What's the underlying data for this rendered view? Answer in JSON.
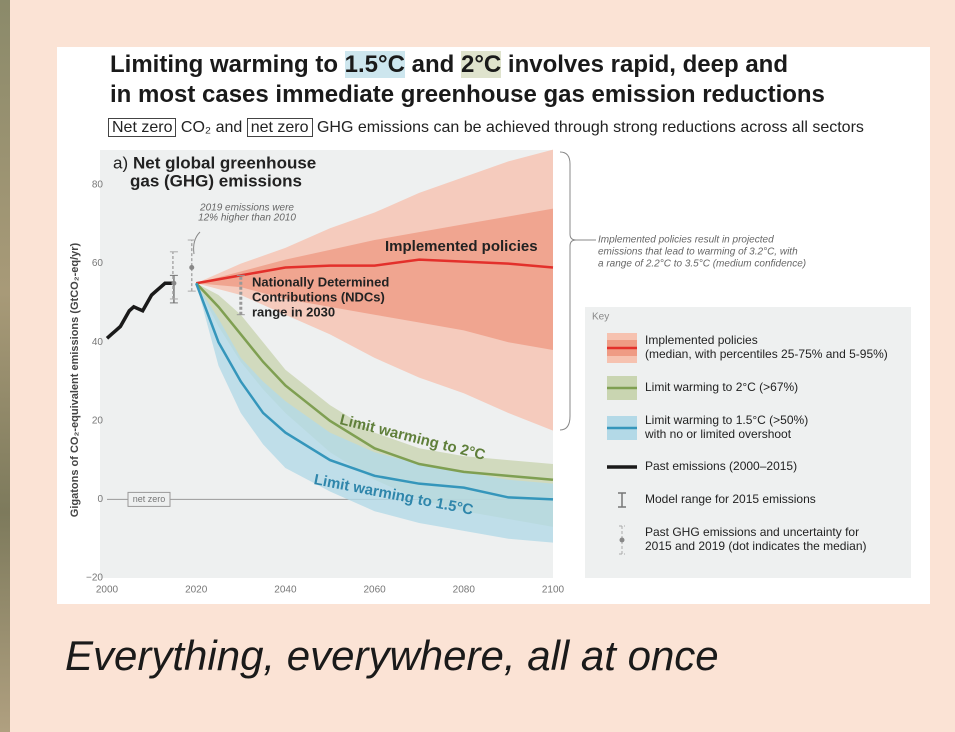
{
  "header": {
    "title_line1": [
      "Limiting warming to ",
      "1.5°C",
      " and ",
      "2°C",
      " involves rapid, deep and"
    ],
    "title_line2": "in most cases immediate greenhouse gas emission reductions",
    "subtitle": [
      "Net zero",
      " CO₂ and ",
      "net zero",
      " GHG emissions can be achieved through strong reductions across all sectors"
    ]
  },
  "chart_data": {
    "type": "line",
    "panel_label": "a)",
    "panel_title": [
      "Net global greenhouse",
      "gas (GHG) emissions"
    ],
    "y_label": "Gigatons of CO₂-equivalent emissions (GtCO₂-eq/yr)",
    "xlim": [
      2000,
      2100
    ],
    "xticks": [
      2000,
      2020,
      2040,
      2060,
      2080,
      2100
    ],
    "ylim": [
      -20,
      80
    ],
    "yticks": [
      {
        "value": -20,
        "label": "−20"
      },
      0,
      20,
      40,
      60,
      80
    ],
    "net_zero": {
      "value": 0,
      "label": "net zero"
    },
    "series": [
      {
        "name": "Implemented policies",
        "color": "#e3302b",
        "x": [
          2020,
          2030,
          2040,
          2050,
          2060,
          2070,
          2080,
          2090,
          2100
        ],
        "values": [
          55,
          57,
          59,
          59.5,
          59.5,
          61,
          60.5,
          60,
          59
        ],
        "bands": [
          {
            "color": "#f6c2b0",
            "lower": [
              55,
              52,
              47,
              42,
              36,
              31,
              27,
              22,
              17.5
            ],
            "upper": [
              55,
              60,
              64,
              69,
              73,
              78,
              82,
              86,
              89
            ]
          },
          {
            "color": "#ef9b84",
            "lower": [
              55,
              54,
              51,
              49,
              47,
              45,
              43,
              40,
              38
            ],
            "upper": [
              55,
              58,
              61,
              63.5,
              66,
              68,
              70,
              72,
              74
            ]
          }
        ]
      },
      {
        "name": "Limit warming to 2°C",
        "color": "#7f9f52",
        "x": [
          2020,
          2025,
          2030,
          2035,
          2040,
          2050,
          2060,
          2070,
          2080,
          2090,
          2100
        ],
        "values": [
          55,
          49,
          42,
          35,
          29,
          20,
          13,
          9,
          7,
          6,
          5
        ],
        "bands": [
          {
            "color": "#c9d5b1",
            "lower": [
              55,
              44,
              35,
              28,
              22,
              12,
              5,
              0,
              -3,
              -5,
              -7
            ],
            "upper": [
              55,
              52,
              47,
              40,
              33,
              24,
              17,
              13,
              11,
              10,
              9
            ]
          }
        ]
      },
      {
        "name": "Limit warming to 1.5°C",
        "color": "#3596bb",
        "x": [
          2020,
          2025,
          2030,
          2035,
          2040,
          2050,
          2060,
          2070,
          2080,
          2090,
          2100
        ],
        "values": [
          55,
          40,
          30,
          22,
          17,
          10,
          6,
          4,
          3,
          0.5,
          0
        ],
        "bands": [
          {
            "color": "#b3d9e7",
            "lower": [
              55,
              34,
              22,
              14,
              8,
              2,
              -3,
              -6,
              -8,
              -10,
              -11
            ],
            "upper": [
              55,
              46,
              36,
              30,
              25,
              17,
              12,
              9,
              7,
              5,
              4
            ]
          }
        ]
      },
      {
        "name": "Past emissions",
        "color": "#1a1a1a",
        "x": [
          2000,
          2001,
          2002,
          2003,
          2004,
          2005,
          2006,
          2007,
          2008,
          2009,
          2010,
          2011,
          2012,
          2013,
          2014,
          2015
        ],
        "values": [
          41,
          42,
          43,
          44,
          46,
          48,
          49,
          48.5,
          48,
          50,
          52,
          53,
          54,
          55,
          55,
          55
        ]
      }
    ],
    "ranges": [
      {
        "x": 2015,
        "low": 50,
        "high": 57,
        "color": "#777777"
      },
      {
        "x": 2015,
        "low": 51,
        "high": 63,
        "median": 55,
        "color": "#aaaaaa"
      },
      {
        "x": 2019,
        "low": 53,
        "high": 66,
        "median": 59,
        "color": "#aaaaaa"
      },
      {
        "x": 2030,
        "low": 47,
        "high": 57,
        "color": "#999999"
      }
    ],
    "annotations": {
      "past_2019": [
        "2019 emissions were",
        "12% higher than 2010"
      ],
      "ndc": [
        "Nationally Determined",
        "Contributions (NDCs)",
        "range in 2030"
      ],
      "projection": [
        "Implemented policies result in projected",
        "emissions that lead to warming of 3.2°C, with",
        "a range of 2.2°C to 3.5°C (medium confidence)"
      ]
    },
    "key": {
      "title": "Key",
      "items": [
        [
          "Implemented policies",
          "(median, with percentiles 25-75% and 5-95%)"
        ],
        [
          "Limit warming to 2°C (>67%)"
        ],
        [
          "Limit warming to 1.5°C (>50%)",
          "with no or limited overshoot"
        ],
        [
          "Past emissions (2000–2015)"
        ],
        [
          "Model range for 2015 emissions"
        ],
        [
          "Past GHG emissions and uncertainty for",
          "2015 and 2019 (dot indicates the median)"
        ]
      ]
    }
  },
  "caption": "Everything, everywhere, all at once"
}
